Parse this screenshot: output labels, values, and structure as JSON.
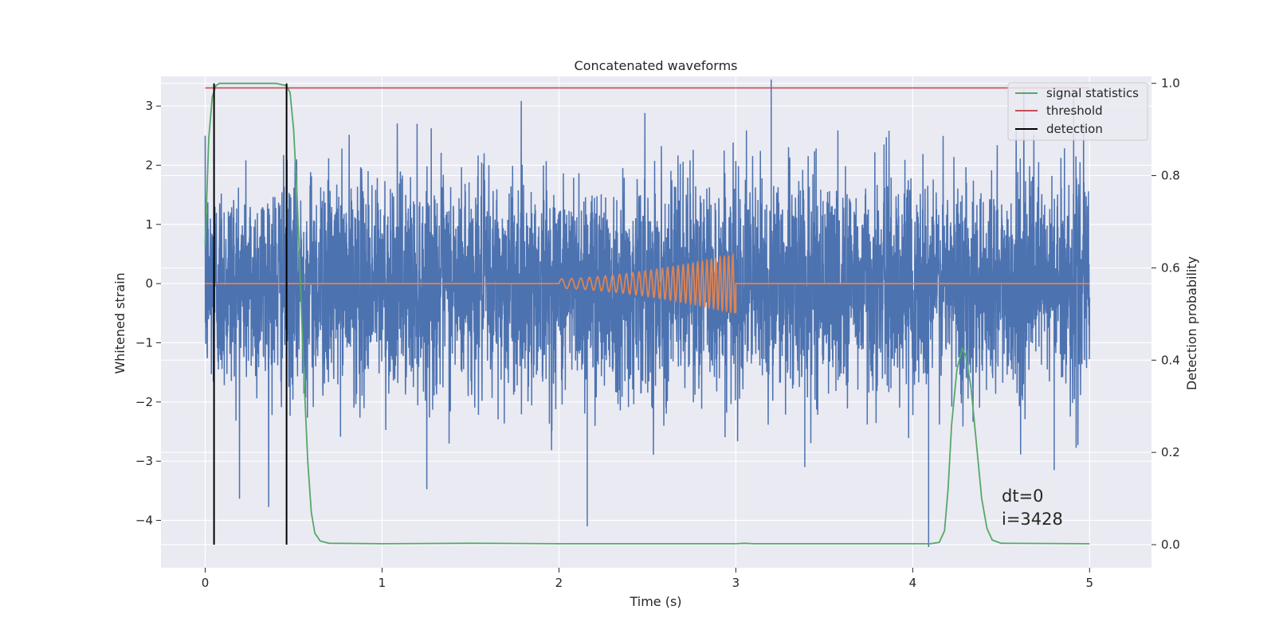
{
  "chart_data": {
    "type": "line",
    "title": "Concatenated waveforms",
    "xlabel": "Time (s)",
    "ylabel": "Whitened strain",
    "ylabel_right": "Detection probability",
    "xlim": [
      -0.25,
      5.35
    ],
    "ylim": [
      -4.8,
      3.5
    ],
    "ylim_right": [
      -0.05,
      1.015
    ],
    "xticks": [
      0,
      1,
      2,
      3,
      4,
      5
    ],
    "yticks": [
      -4,
      -3,
      -2,
      -1,
      0,
      1,
      2,
      3
    ],
    "yticks_right": [
      0.0,
      0.2,
      0.4,
      0.6,
      0.8,
      1.0
    ],
    "xtick_labels": [
      "0",
      "1",
      "2",
      "3",
      "4",
      "5"
    ],
    "ytick_labels": [
      "−4",
      "−3",
      "−2",
      "−1",
      "0",
      "1",
      "2",
      "3"
    ],
    "ytick_right_labels": [
      "0.0",
      "0.2",
      "0.4",
      "0.6",
      "0.8",
      "1.0"
    ],
    "grid": true,
    "legend_position": "top-right",
    "legend": [
      {
        "label": "signal statistics",
        "color": "#55a868"
      },
      {
        "label": "threshold",
        "color": "#c44e52"
      },
      {
        "label": "detection",
        "color": "#000000"
      }
    ],
    "series": [
      {
        "kind": "noise",
        "axis": "left",
        "color": "#4c72b0",
        "x_range": [
          0,
          5
        ],
        "std": 0.9,
        "min": -4.4,
        "max": 3.45,
        "spikes": [
          {
            "x": 3.2,
            "y": 3.45
          },
          {
            "x": 2.16,
            "y": -4.1
          },
          {
            "x": 4.09,
            "y": -4.45
          },
          {
            "x": 4.8,
            "y": -3.15
          },
          {
            "x": 4.91,
            "y": 3.2
          },
          {
            "x": 3.39,
            "y": -3.1
          }
        ]
      },
      {
        "kind": "chirp",
        "axis": "left",
        "color": "#dd8452",
        "x_range": [
          0,
          5
        ],
        "chirp_start": 2.0,
        "chirp_end": 3.0,
        "amp_start": 0.08,
        "amp_end": 0.5,
        "cycles": 30
      },
      {
        "name": "signal statistics",
        "axis": "right",
        "color": "#55a868",
        "x": [
          0.0,
          0.02,
          0.04,
          0.06,
          0.08,
          0.1,
          0.2,
          0.3,
          0.4,
          0.46,
          0.48,
          0.5,
          0.52,
          0.54,
          0.56,
          0.58,
          0.6,
          0.62,
          0.65,
          0.7,
          1.0,
          1.5,
          2.0,
          2.5,
          3.0,
          3.05,
          3.1,
          3.5,
          4.0,
          4.1,
          4.15,
          4.18,
          4.2,
          4.22,
          4.25,
          4.28,
          4.3,
          4.33,
          4.36,
          4.39,
          4.42,
          4.45,
          4.5,
          5.0
        ],
        "y": [
          0.65,
          0.88,
          0.97,
          0.995,
          1.0,
          1.0,
          1.0,
          1.0,
          1.0,
          0.995,
          0.98,
          0.9,
          0.75,
          0.55,
          0.35,
          0.18,
          0.07,
          0.025,
          0.008,
          0.003,
          0.002,
          0.003,
          0.002,
          0.002,
          0.002,
          0.003,
          0.002,
          0.002,
          0.002,
          0.002,
          0.005,
          0.03,
          0.12,
          0.26,
          0.38,
          0.425,
          0.41,
          0.34,
          0.22,
          0.1,
          0.035,
          0.01,
          0.003,
          0.002
        ]
      },
      {
        "name": "threshold",
        "axis": "right",
        "color": "#c44e52",
        "x": [
          0,
          5
        ],
        "y": [
          0.99,
          0.99
        ]
      }
    ],
    "detections": [
      0.05,
      0.46
    ],
    "annotation_lines": [
      "dt=0",
      "i=3428"
    ]
  }
}
